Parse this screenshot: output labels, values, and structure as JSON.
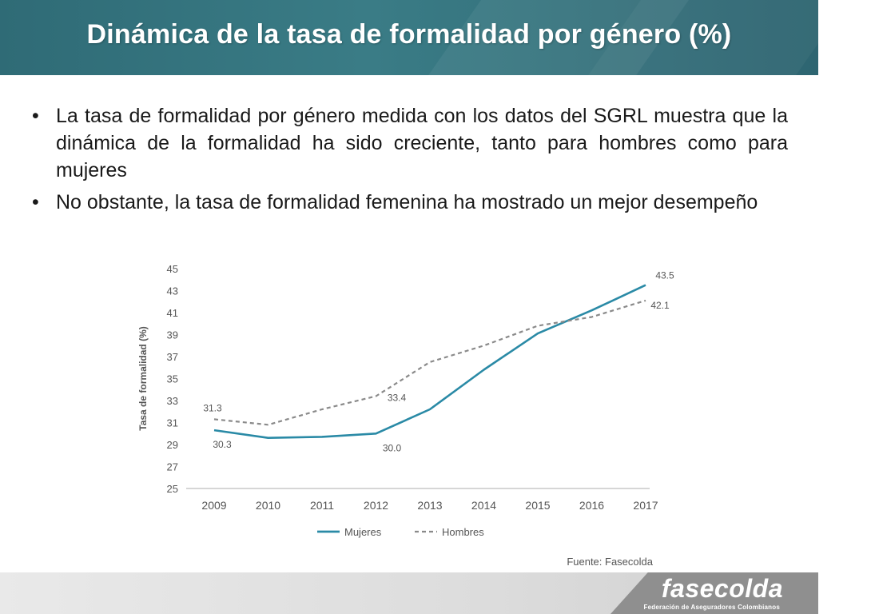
{
  "header": {
    "title": "Dinámica de la tasa de formalidad por género (%)"
  },
  "bullets": [
    "La tasa de formalidad por género medida con los datos del SGRL muestra que la dinámica de la formalidad ha sido creciente, tanto para hombres como para mujeres",
    "No obstante, la tasa de formalidad femenina ha mostrado un mejor desempeño"
  ],
  "bullet_symbol": "•",
  "chart_data": {
    "type": "line",
    "x": [
      "2009",
      "2010",
      "2011",
      "2012",
      "2013",
      "2014",
      "2015",
      "2016",
      "2017"
    ],
    "ylabel": "Tasa de formalidad (%)",
    "ylim": [
      25,
      45
    ],
    "yticks": [
      "45",
      "43",
      "41",
      "39",
      "37",
      "35",
      "33",
      "31",
      "29",
      "27",
      "25"
    ],
    "series": [
      {
        "name": "Mujeres",
        "color": "#2a8aa6",
        "style": "solid",
        "values": [
          30.3,
          29.6,
          29.7,
          30.0,
          32.2,
          35.8,
          39.1,
          41.2,
          43.5
        ]
      },
      {
        "name": "Hombres",
        "color": "#8a8a8a",
        "style": "dashed",
        "values": [
          31.3,
          30.8,
          32.2,
          33.4,
          36.5,
          38.0,
          39.8,
          40.6,
          42.1
        ]
      }
    ],
    "annotations": [
      {
        "series": 0,
        "index": 0,
        "text": "30.3"
      },
      {
        "series": 1,
        "index": 0,
        "text": "31.3"
      },
      {
        "series": 0,
        "index": 3,
        "text": "30.0"
      },
      {
        "series": 1,
        "index": 3,
        "text": "33.4"
      },
      {
        "series": 0,
        "index": 8,
        "text": "43.5"
      },
      {
        "series": 1,
        "index": 8,
        "text": "42.1"
      }
    ],
    "legend": [
      "Mujeres",
      "Hombres"
    ],
    "legend_position": "bottom-left",
    "source": "Fuente: Fasecolda",
    "grid": false
  },
  "logo": {
    "name": "fasecolda",
    "subtitle": "Federación de Aseguradores Colombianos"
  }
}
